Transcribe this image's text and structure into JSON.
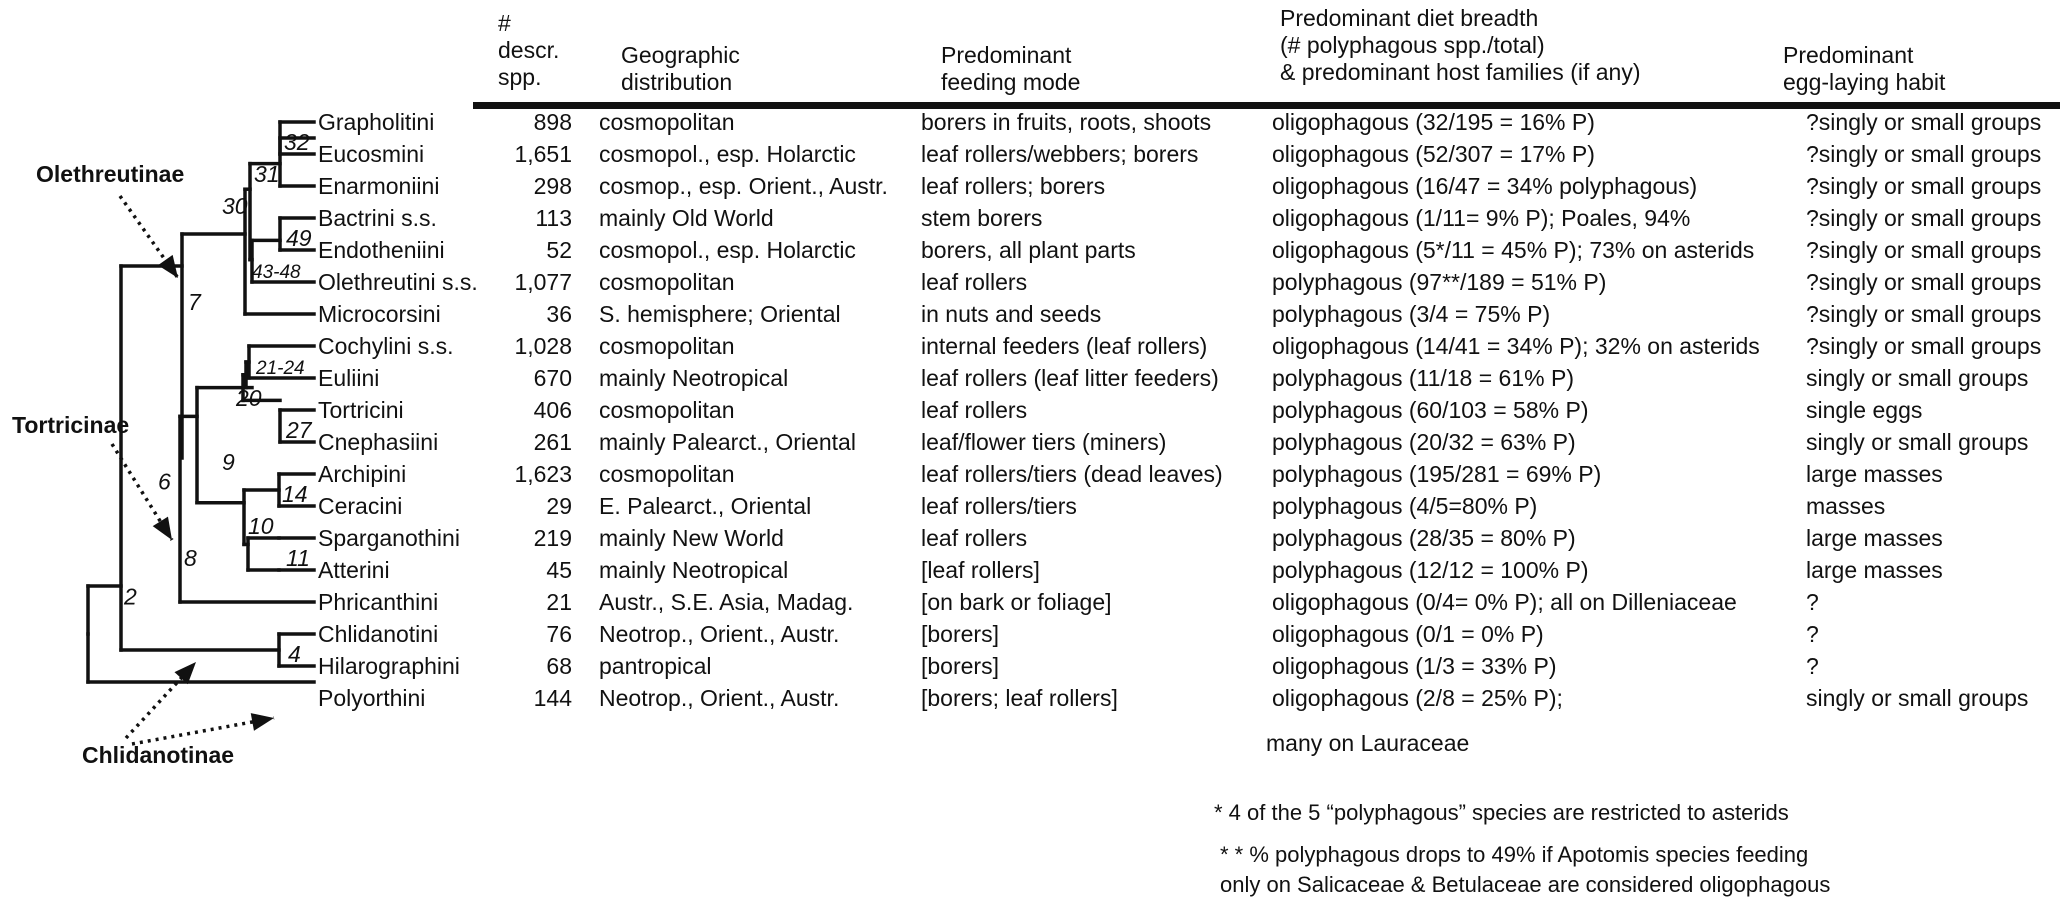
{
  "headers": {
    "count": [
      "#",
      "descr.",
      "spp."
    ],
    "geo": [
      "Geographic",
      "distribution"
    ],
    "feeding": [
      "Predominant",
      "feeding mode"
    ],
    "diet": [
      "Predominant diet breadth",
      "(# polyphagous spp./total)",
      "&  predominant host families (if any)"
    ],
    "egg": [
      "Predominant",
      "egg-laying habit"
    ]
  },
  "rows": [
    {
      "tribe": "Grapholitini",
      "count": "898",
      "geo": "cosmopolitan",
      "feeding": "borers in fruits, roots, shoots",
      "diet": "oligophagous (32/195 = 16% P)",
      "egg": "?singly or small groups"
    },
    {
      "tribe": "Eucosmini",
      "count": "1,651",
      "geo": "cosmopol., esp. Holarctic",
      "feeding": "leaf rollers/webbers; borers",
      "diet": "oligophagous (52/307 = 17% P)",
      "egg": "?singly or small groups"
    },
    {
      "tribe": "Enarmoniini",
      "count": "298",
      "geo": "cosmop., esp. Orient., Austr.",
      "feeding": "leaf rollers; borers",
      "diet": "oligophagous (16/47 = 34% polyphagous)",
      "egg": "?singly or small groups"
    },
    {
      "tribe": "Bactrini s.s.",
      "count": "113",
      "geo": "mainly Old World",
      "feeding": "stem borers",
      "diet": "oligophagous (1/11= 9% P);  Poales, 94%",
      "egg": "?singly or small groups"
    },
    {
      "tribe": "Endotheniini",
      "count": "52",
      "geo": "cosmopol., esp. Holarctic",
      "feeding": "borers, all plant parts",
      "diet": "oligophagous (5*/11 = 45% P); 73% on asterids",
      "egg": "?singly or small groups"
    },
    {
      "tribe": "Olethreutini s.s.",
      "count": "1,077",
      "geo": "cosmopolitan",
      "feeding": "leaf rollers",
      "diet": "polyphagous (97**/189 = 51% P)",
      "egg": "?singly or small groups"
    },
    {
      "tribe": "Microcorsini",
      "count": "36",
      "geo": "S. hemisphere; Oriental",
      "feeding": "in nuts and seeds",
      "diet": "polyphagous (3/4 = 75% P)",
      "egg": "?singly or small groups"
    },
    {
      "tribe": "Cochylini s.s.",
      "count": "1,028",
      "geo": "cosmopolitan",
      "feeding": "internal feeders (leaf rollers)",
      "diet": "oligophagous (14/41 = 34% P);  32% on asterids",
      "egg": "?singly or small groups"
    },
    {
      "tribe": "Euliini",
      "count": "670",
      "geo": "mainly Neotropical",
      "feeding": "leaf rollers (leaf litter feeders)",
      "diet": "polyphagous (11/18 = 61% P)",
      "egg": "singly or small groups"
    },
    {
      "tribe": "Tortricini",
      "count": "406",
      "geo": "cosmopolitan",
      "feeding": "leaf rollers",
      "diet": "polyphagous (60/103 = 58% P)",
      "egg": "single eggs"
    },
    {
      "tribe": "Cnephasiini",
      "count": "261",
      "geo": "mainly Palearct., Oriental",
      "feeding": "leaf/flower tiers (miners)",
      "diet": "polyphagous (20/32 = 63% P)",
      "egg": "singly or small groups"
    },
    {
      "tribe": "Archipini",
      "count": "1,623",
      "geo": "cosmopolitan",
      "feeding": "leaf rollers/tiers (dead leaves)",
      "diet": "polyphagous (195/281 = 69% P)",
      "egg": "large masses"
    },
    {
      "tribe": "Ceracini",
      "count": "29",
      "geo": "E. Palearct., Oriental",
      "feeding": "leaf rollers/tiers",
      "diet": "polyphagous (4/5=80% P)",
      "egg": "masses"
    },
    {
      "tribe": "Sparganothini",
      "count": "219",
      "geo": "mainly New World",
      "feeding": "leaf rollers",
      "diet": "polyphagous (28/35 = 80% P)",
      "egg": "large masses"
    },
    {
      "tribe": "Atterini",
      "count": "45",
      "geo": "mainly Neotropical",
      "feeding": "[leaf rollers]",
      "diet": "polyphagous (12/12 = 100% P)",
      "egg": "large masses"
    },
    {
      "tribe": "Phricanthini",
      "count": "21",
      "geo": "Austr., S.E. Asia, Madag.",
      "feeding": "[on bark or foliage]",
      "diet": "oligophagous (0/4= 0% P); all on Dilleniaceae",
      "egg": "?"
    },
    {
      "tribe": "Chlidanotini",
      "count": "76",
      "geo": "Neotrop., Orient., Austr.",
      "feeding": "[borers]",
      "diet": "oligophagous (0/1 = 0% P)",
      "egg": "?"
    },
    {
      "tribe": "Hilarographini",
      "count": "68",
      "geo": "pantropical",
      "feeding": "[borers]",
      "diet": "oligophagous (1/3 = 33% P)",
      "egg": "?"
    },
    {
      "tribe": "Polyorthini",
      "count": "144",
      "geo": "Neotrop., Orient., Austr.",
      "feeding": "[borers; leaf rollers]",
      "diet": "oligophagous (2/8 = 25% P);",
      "egg": "singly or small groups"
    }
  ],
  "extra_lines": [
    "many on Lauraceae"
  ],
  "subfamilies": [
    "Olethreutinae",
    "Tortricinae",
    "Chlidanotinae"
  ],
  "nodes": [
    "32",
    "31",
    "30",
    "49",
    "43-48",
    "7",
    "21-24",
    "20",
    "27",
    "9",
    "14",
    "10",
    "11",
    "8",
    "6",
    "4",
    "2"
  ],
  "footnotes": [
    "* 4 of the 5 “polyphagous” species are restricted to asterids",
    "* * % polyphagous drops to 49% if Apotomis species feeding",
    "only on Salicaceae & Betulaceae are considered oligophagous"
  ],
  "colors": {
    "ink": "#111111",
    "background": "#ffffff"
  }
}
